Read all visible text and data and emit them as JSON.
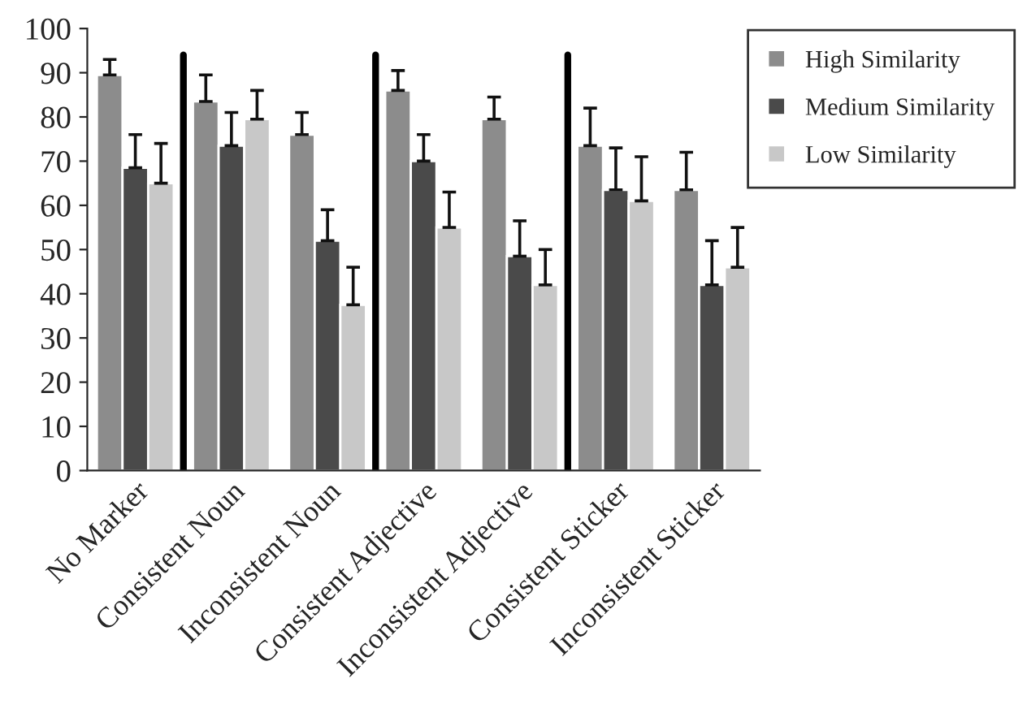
{
  "chart_data": {
    "type": "bar",
    "categories": [
      "No Marker",
      "Consistent Noun",
      "Inconsistent Noun",
      "Consistent Adjective",
      "Inconsistent Adjective",
      "Consistent Sticker",
      "Inconsistent Sticker"
    ],
    "series": [
      {
        "name": "High Similarity",
        "color": "#8c8c8c",
        "values": [
          89.5,
          83.5,
          76,
          86,
          79.5,
          73.5,
          63.5
        ],
        "errors": [
          [
            89.5,
            93
          ],
          [
            83.5,
            89.5
          ],
          [
            76,
            81
          ],
          [
            86,
            90.5
          ],
          [
            79.5,
            84.5
          ],
          [
            73.5,
            82
          ],
          [
            63.5,
            72
          ]
        ]
      },
      {
        "name": "Medium Similarity",
        "color": "#4a4a4a",
        "values": [
          68.5,
          73.5,
          52,
          70,
          48.5,
          63.5,
          42
        ],
        "errors": [
          [
            68.5,
            76
          ],
          [
            73.5,
            81
          ],
          [
            52,
            59
          ],
          [
            70,
            76
          ],
          [
            48.5,
            56.5
          ],
          [
            63.5,
            73
          ],
          [
            42,
            52
          ]
        ]
      },
      {
        "name": "Low Similarity",
        "color": "#c8c8c8",
        "values": [
          65,
          79.5,
          37.5,
          55,
          42,
          61,
          46
        ],
        "errors": [
          [
            65,
            74
          ],
          [
            79.5,
            86
          ],
          [
            37.5,
            46
          ],
          [
            55,
            63
          ],
          [
            42,
            50
          ],
          [
            61,
            71
          ],
          [
            46,
            55
          ]
        ]
      }
    ],
    "ylim": [
      0,
      100
    ],
    "yticks": [
      0,
      10,
      20,
      30,
      40,
      50,
      60,
      70,
      80,
      90,
      100
    ],
    "legend": "top right",
    "grid": false
  }
}
